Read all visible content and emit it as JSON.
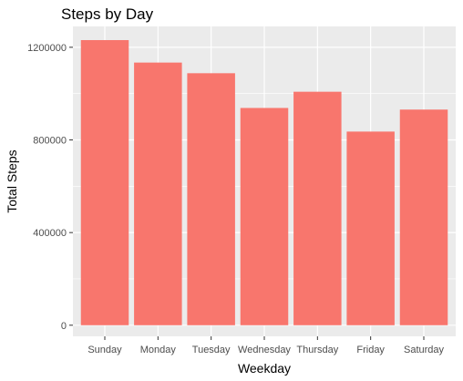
{
  "chart_data": {
    "type": "bar",
    "title": "Steps by Day",
    "xlabel": "Weekday",
    "ylabel": "Total Steps",
    "categories": [
      "Sunday",
      "Monday",
      "Tuesday",
      "Wednesday",
      "Thursday",
      "Friday",
      "Saturday"
    ],
    "values": [
      1231000,
      1134000,
      1088000,
      938000,
      1008000,
      836000,
      931000
    ],
    "y_ticks": [
      0,
      400000,
      800000,
      1200000
    ],
    "y_tick_labels": [
      "0",
      "400000",
      "800000",
      "1200000"
    ],
    "ylim": [
      -48000,
      1290000
    ],
    "grid": true,
    "legend": "none"
  },
  "colors": {
    "panel_background": "#ebebeb",
    "grid_line": "#ffffff",
    "bar_fill": "#f8766d",
    "tick_text": "#4d4d4d",
    "tick_mark": "#333333"
  }
}
